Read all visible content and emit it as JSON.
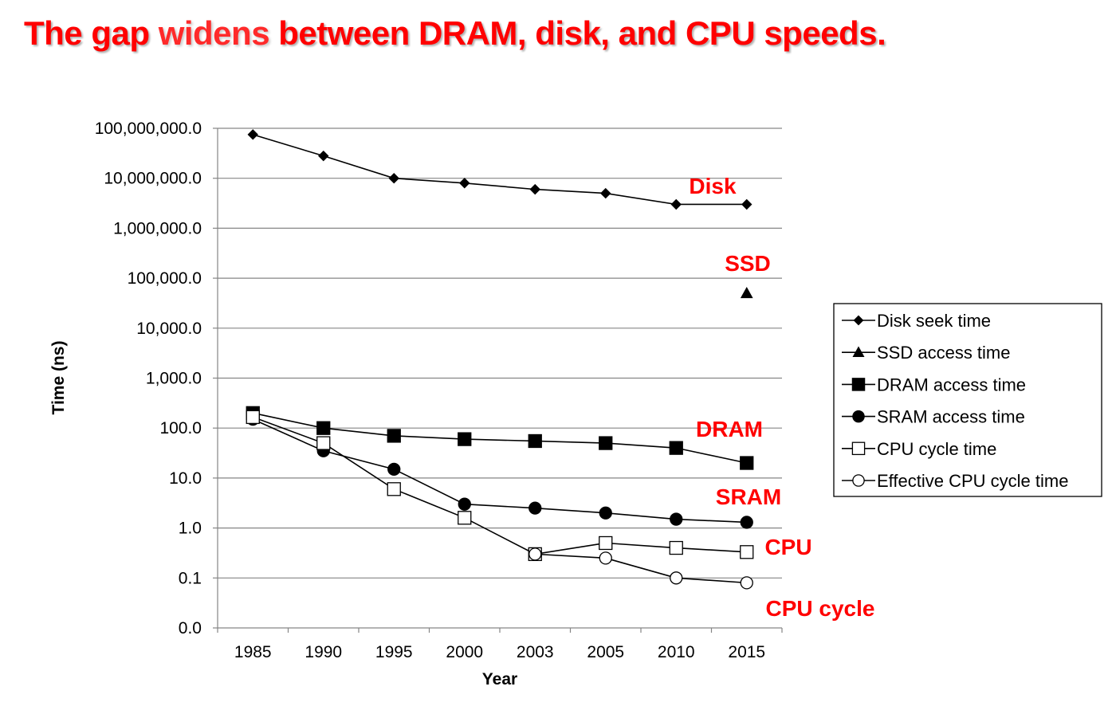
{
  "slide": {
    "title_part1": "The gap ",
    "title_emph": "widens",
    "title_part2": " between DRAM, disk, and CPU speeds."
  },
  "chart_data": {
    "type": "line",
    "scale": "log",
    "xlabel": "Year",
    "ylabel": "Time (ns)",
    "categories": [
      "1985",
      "1990",
      "1995",
      "2000",
      "2003",
      "2005",
      "2010",
      "2015"
    ],
    "ylim": [
      0.01,
      100000000
    ],
    "ytick_values": [
      0.01,
      0.1,
      1,
      10,
      100,
      1000,
      10000,
      100000,
      1000000,
      10000000,
      100000000
    ],
    "ytick_labels": [
      "0.0",
      "0.1",
      "1.0",
      "10.0",
      "100.0",
      "1,000.0",
      "10,000.0",
      "100,000.0",
      "1,000,000.0",
      "10,000,000.0",
      "100,000,000.0"
    ],
    "grid": "horizontal",
    "legend_position": "right",
    "series": [
      {
        "name": "Disk seek time",
        "marker": "diamond",
        "fill": "#000000",
        "values": [
          75000000,
          28000000,
          10000000,
          8000000,
          6000000,
          5000000,
          3000000,
          3000000
        ]
      },
      {
        "name": "SSD access time",
        "marker": "triangle",
        "fill": "#000000",
        "values": [
          null,
          null,
          null,
          null,
          null,
          null,
          null,
          50000
        ]
      },
      {
        "name": "DRAM access time",
        "marker": "square",
        "fill": "#000000",
        "values": [
          200,
          100,
          70,
          60,
          55,
          50,
          40,
          20
        ]
      },
      {
        "name": "SRAM access time",
        "marker": "circle",
        "fill": "#000000",
        "values": [
          150,
          35,
          15,
          3,
          2.5,
          2,
          1.5,
          1.3
        ]
      },
      {
        "name": "CPU cycle time",
        "marker": "square",
        "fill": "#ffffff",
        "values": [
          166,
          50,
          6,
          1.6,
          0.3,
          0.5,
          0.4,
          0.33
        ]
      },
      {
        "name": "Effective CPU cycle time",
        "marker": "circle",
        "fill": "#ffffff",
        "values": [
          null,
          null,
          null,
          null,
          0.3,
          0.25,
          0.1,
          0.08
        ]
      }
    ],
    "annotations": [
      "Disk",
      "SSD",
      "DRAM",
      "SRAM",
      "CPU",
      "CPU cycle"
    ]
  }
}
